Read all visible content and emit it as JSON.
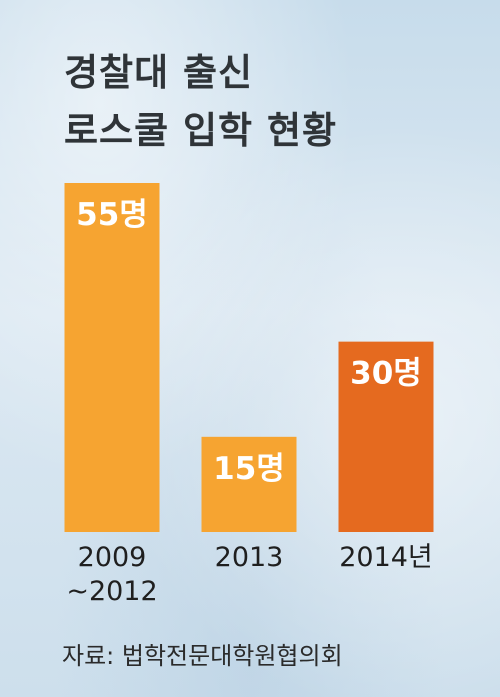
{
  "title_lines": [
    "경찰대 출신",
    "로스쿨 입학 현황"
  ],
  "source": "자료: 법학전문대학원협의회",
  "colors": {
    "bar": "#f6a431",
    "bar_highlight": "#e56a1f",
    "label_dark": "#1f1f1f",
    "value_text": "#ffffff"
  },
  "chart_data": {
    "type": "bar",
    "title": "경찰대 출신 로스쿨 입학 현황",
    "categories": [
      [
        "2009",
        "~2012"
      ],
      [
        "2013"
      ],
      [
        "2014년"
      ]
    ],
    "values": [
      55,
      15,
      30
    ],
    "value_labels": [
      "55명",
      "15명",
      "30명"
    ],
    "unit": "명",
    "highlight_index": 2,
    "ylim": [
      0,
      55
    ],
    "grid": false,
    "legend": "none"
  }
}
